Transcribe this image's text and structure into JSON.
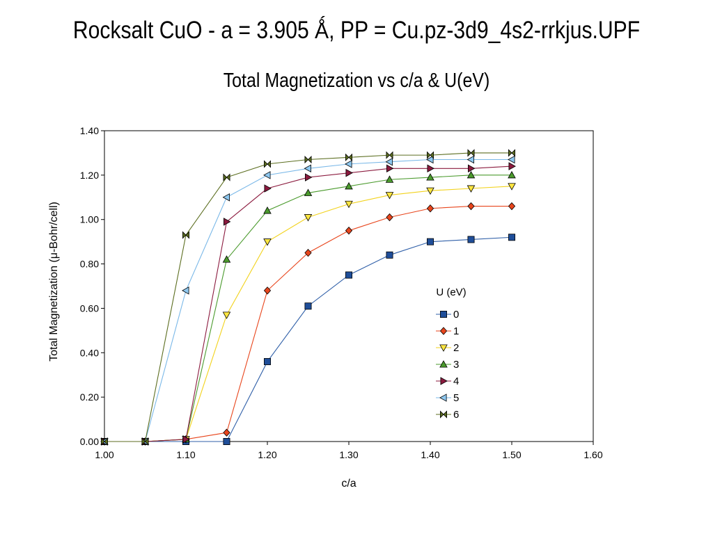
{
  "page": {
    "title": "Rocksalt CuO - a = 3.905 Ǻ, PP = Cu.pz-3d9_4s2-rrkjus.UPF"
  },
  "chart_data": {
    "type": "line",
    "title": "Total Magnetization vs c/a & U(eV)",
    "xlabel": "c/a",
    "ylabel": "Total Magnetization (μ-Bohr/cell)",
    "xlim": [
      1.0,
      1.6
    ],
    "ylim": [
      0.0,
      1.4
    ],
    "xticks": [
      "1.00",
      "1.10",
      "1.20",
      "1.30",
      "1.40",
      "1.50",
      "1.60"
    ],
    "yticks": [
      "0.00",
      "0.20",
      "0.40",
      "0.60",
      "0.80",
      "1.00",
      "1.20",
      "1.40"
    ],
    "grid": false,
    "legend_title": "U (eV)",
    "legend_position": "right",
    "x": [
      1.0,
      1.05,
      1.1,
      1.15,
      1.2,
      1.25,
      1.3,
      1.35,
      1.4,
      1.45,
      1.5
    ],
    "series": [
      {
        "name": "0",
        "color": "#1f4e99",
        "line": "#2f5fa8",
        "marker": "square",
        "values": [
          0,
          0,
          0,
          0,
          0.36,
          0.61,
          0.75,
          0.84,
          0.9,
          0.91,
          0.92
        ]
      },
      {
        "name": "1",
        "color": "#e8451c",
        "line": "#e8451c",
        "marker": "diamond",
        "values": [
          0,
          0,
          0.01,
          0.04,
          0.68,
          0.85,
          0.95,
          1.01,
          1.05,
          1.06,
          1.06
        ]
      },
      {
        "name": "2",
        "color": "#ffe640",
        "line": "#f2d21b",
        "marker": "triangle-down",
        "values": [
          0,
          0,
          0.01,
          0.57,
          0.9,
          1.01,
          1.07,
          1.11,
          1.13,
          1.14,
          1.15
        ]
      },
      {
        "name": "3",
        "color": "#4a9a2c",
        "line": "#4a9a2c",
        "marker": "triangle-up",
        "values": [
          0,
          0,
          0.01,
          0.82,
          1.04,
          1.12,
          1.15,
          1.18,
          1.19,
          1.2,
          1.2
        ]
      },
      {
        "name": "4",
        "color": "#8b1a3e",
        "line": "#8b1a3e",
        "marker": "triangle-right",
        "values": [
          0,
          0,
          0.01,
          0.99,
          1.14,
          1.19,
          1.21,
          1.23,
          1.23,
          1.23,
          1.24
        ]
      },
      {
        "name": "5",
        "color": "#8ec8f0",
        "line": "#7ab8e8",
        "marker": "triangle-left",
        "values": [
          0,
          0,
          0.68,
          1.1,
          1.2,
          1.23,
          1.25,
          1.26,
          1.27,
          1.27,
          1.27
        ]
      },
      {
        "name": "6",
        "color": "#5c6e20",
        "line": "#5c6e20",
        "marker": "bowtie",
        "values": [
          0,
          0,
          0.93,
          1.19,
          1.25,
          1.27,
          1.28,
          1.29,
          1.29,
          1.3,
          1.3
        ]
      }
    ]
  }
}
